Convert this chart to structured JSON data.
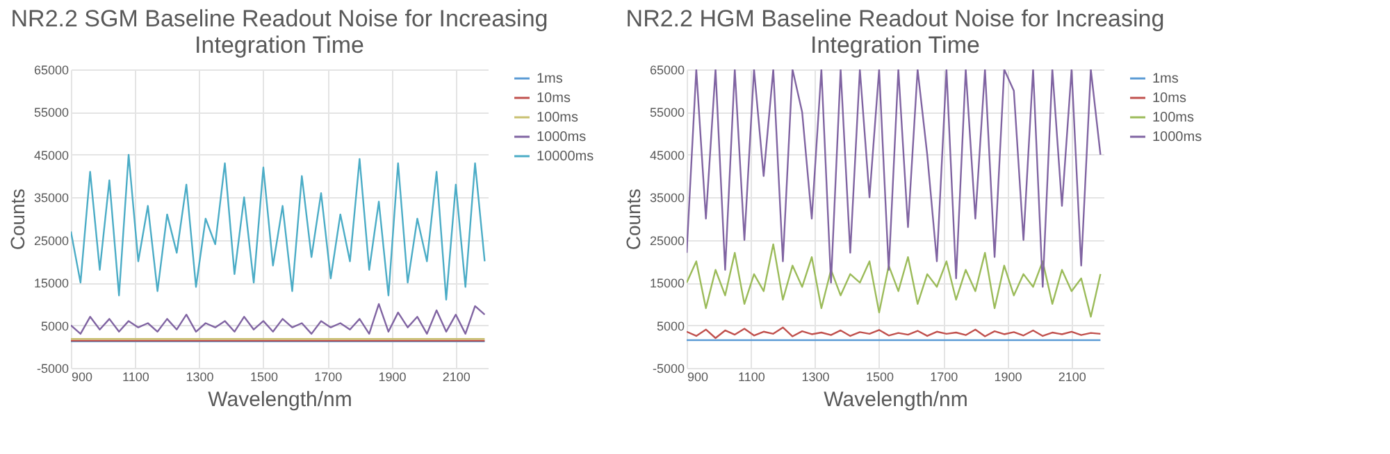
{
  "chart_data": [
    {
      "type": "line",
      "title": "NR2.2 SGM Baseline Readout Noise for Increasing Integration Time",
      "xlabel": "Wavelength/nm",
      "ylabel": "Counts",
      "x": [
        900,
        930,
        960,
        990,
        1020,
        1050,
        1080,
        1110,
        1140,
        1170,
        1200,
        1230,
        1260,
        1290,
        1320,
        1350,
        1380,
        1410,
        1440,
        1470,
        1500,
        1530,
        1560,
        1590,
        1620,
        1650,
        1680,
        1710,
        1740,
        1770,
        1800,
        1830,
        1860,
        1890,
        1920,
        1950,
        1980,
        2010,
        2040,
        2070,
        2100,
        2130,
        2160,
        2190
      ],
      "xlim": [
        900,
        2200
      ],
      "xticks": [
        900,
        1100,
        1300,
        1500,
        1700,
        1900,
        2100
      ],
      "ylim": [
        -5000,
        65000
      ],
      "yticks": [
        -5000,
        5000,
        15000,
        25000,
        35000,
        45000,
        55000,
        65000
      ],
      "grid": true,
      "legend": "right",
      "line_style": "solid",
      "series": [
        {
          "name": "1ms",
          "color": "#5b9bd5",
          "values": [
            1200,
            1200,
            1200,
            1200,
            1200,
            1200,
            1200,
            1200,
            1200,
            1200,
            1200,
            1200,
            1200,
            1200,
            1200,
            1200,
            1200,
            1200,
            1200,
            1200,
            1200,
            1200,
            1200,
            1200,
            1200,
            1200,
            1200,
            1200,
            1200,
            1200,
            1200,
            1200,
            1200,
            1200,
            1200,
            1200,
            1200,
            1200,
            1200,
            1200,
            1200,
            1200,
            1200,
            1200
          ]
        },
        {
          "name": "10ms",
          "color": "#c0504d",
          "values": [
            1400,
            1400,
            1400,
            1400,
            1400,
            1400,
            1400,
            1400,
            1400,
            1400,
            1400,
            1400,
            1400,
            1400,
            1400,
            1400,
            1400,
            1400,
            1400,
            1400,
            1400,
            1400,
            1400,
            1400,
            1400,
            1400,
            1400,
            1400,
            1400,
            1400,
            1400,
            1400,
            1400,
            1400,
            1400,
            1400,
            1400,
            1400,
            1400,
            1400,
            1400,
            1400,
            1400,
            1400
          ]
        },
        {
          "name": "100ms",
          "color": "#c8c070",
          "values": [
            1800,
            1800,
            1800,
            1800,
            1800,
            1800,
            1800,
            1800,
            1800,
            1800,
            1800,
            1800,
            1800,
            1800,
            1800,
            1800,
            1800,
            1800,
            1800,
            1800,
            1800,
            1800,
            1800,
            1800,
            1800,
            1800,
            1800,
            1800,
            1800,
            1800,
            1800,
            1800,
            1800,
            1800,
            1800,
            1800,
            1800,
            1800,
            1800,
            1800,
            1800,
            1800,
            1800,
            1800
          ]
        },
        {
          "name": "1000ms",
          "color": "#8064a2",
          "values": [
            5000,
            3000,
            7000,
            4000,
            6500,
            3500,
            6000,
            4500,
            5500,
            3500,
            6500,
            4000,
            7500,
            3500,
            5500,
            4500,
            6000,
            3500,
            7000,
            4000,
            6000,
            3500,
            6500,
            4500,
            5500,
            3000,
            6000,
            4500,
            5500,
            4000,
            6500,
            3000,
            10000,
            3500,
            8000,
            4500,
            7000,
            3000,
            8500,
            3500,
            7500,
            3000,
            9500,
            7500
          ]
        },
        {
          "name": "10000ms",
          "color": "#4bacc6",
          "values": [
            27000,
            15000,
            41000,
            18000,
            39000,
            12000,
            45000,
            20000,
            33000,
            13000,
            31000,
            22000,
            38000,
            14000,
            30000,
            24000,
            43000,
            17000,
            35000,
            15000,
            42000,
            19000,
            33000,
            13000,
            40000,
            21000,
            36000,
            16000,
            31000,
            20000,
            44000,
            18000,
            34000,
            12000,
            43000,
            15000,
            30000,
            20000,
            41000,
            11000,
            38000,
            14000,
            43000,
            20000
          ]
        }
      ]
    },
    {
      "type": "line",
      "title": "NR2.2 HGM Baseline Readout Noise for Increasing Integration Time",
      "xlabel": "Wavelength/nm",
      "ylabel": "Counts",
      "x": [
        900,
        930,
        960,
        990,
        1020,
        1050,
        1080,
        1110,
        1140,
        1170,
        1200,
        1230,
        1260,
        1290,
        1320,
        1350,
        1380,
        1410,
        1440,
        1470,
        1500,
        1530,
        1560,
        1590,
        1620,
        1650,
        1680,
        1710,
        1740,
        1770,
        1800,
        1830,
        1860,
        1890,
        1920,
        1950,
        1980,
        2010,
        2040,
        2070,
        2100,
        2130,
        2160,
        2190
      ],
      "xlim": [
        900,
        2200
      ],
      "xticks": [
        900,
        1100,
        1300,
        1500,
        1700,
        1900,
        2100
      ],
      "ylim": [
        -5000,
        65000
      ],
      "yticks": [
        -5000,
        5000,
        15000,
        25000,
        35000,
        45000,
        55000,
        65000
      ],
      "grid": true,
      "legend": "right",
      "line_style": "solid",
      "series": [
        {
          "name": "1ms",
          "color": "#5b9bd5",
          "values": [
            1500,
            1500,
            1500,
            1500,
            1500,
            1500,
            1500,
            1500,
            1500,
            1500,
            1500,
            1500,
            1500,
            1500,
            1500,
            1500,
            1500,
            1500,
            1500,
            1500,
            1500,
            1500,
            1500,
            1500,
            1500,
            1500,
            1500,
            1500,
            1500,
            1500,
            1500,
            1500,
            1500,
            1500,
            1500,
            1500,
            1500,
            1500,
            1500,
            1500,
            1500,
            1500,
            1500,
            1500
          ]
        },
        {
          "name": "10ms",
          "color": "#c0504d",
          "values": [
            3500,
            2500,
            4000,
            2000,
            3800,
            2800,
            4200,
            2600,
            3500,
            3000,
            4500,
            2400,
            3600,
            2900,
            3300,
            2700,
            3800,
            2500,
            3400,
            3000,
            3900,
            2600,
            3200,
            2800,
            3700,
            2500,
            3500,
            3000,
            3300,
            2700,
            4000,
            2400,
            3600,
            2900,
            3400,
            2600,
            3800,
            2500,
            3300,
            2900,
            3500,
            2700,
            3200,
            3000
          ]
        },
        {
          "name": "100ms",
          "color": "#9bbb59",
          "values": [
            15000,
            20000,
            9000,
            18000,
            12000,
            22000,
            10000,
            17000,
            13000,
            24000,
            11000,
            19000,
            14000,
            21000,
            9000,
            18000,
            12000,
            17000,
            15000,
            20000,
            8000,
            19000,
            13000,
            21000,
            10000,
            17000,
            14000,
            20000,
            11000,
            18000,
            13000,
            22000,
            9000,
            19000,
            12000,
            17000,
            14000,
            20000,
            10000,
            18000,
            13000,
            16000,
            7000,
            17000
          ]
        },
        {
          "name": "1000ms",
          "color": "#8064a2",
          "values": [
            22000,
            65000,
            30000,
            65000,
            18000,
            65000,
            25000,
            65000,
            40000,
            65000,
            20000,
            65000,
            55000,
            30000,
            65000,
            15000,
            65000,
            22000,
            65000,
            35000,
            65000,
            18000,
            65000,
            28000,
            65000,
            45000,
            20000,
            65000,
            16000,
            65000,
            30000,
            65000,
            21000,
            65000,
            60000,
            25000,
            65000,
            14000,
            65000,
            33000,
            65000,
            19000,
            65000,
            45000
          ]
        }
      ]
    }
  ]
}
